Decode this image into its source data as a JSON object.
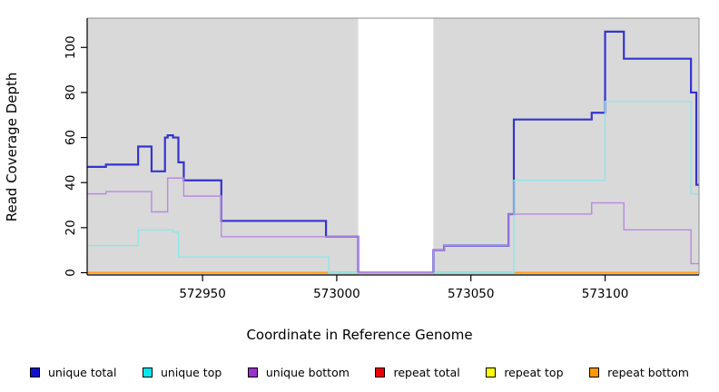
{
  "chart_data": {
    "type": "line",
    "subtype": "step-after",
    "title": "",
    "xlabel": "Coordinate in Reference Genome",
    "ylabel": "Read Coverage Depth",
    "xlim": [
      572907,
      573135
    ],
    "ylim": [
      -1,
      113
    ],
    "x_ticks": [
      572950,
      573000,
      573050,
      573100
    ],
    "y_ticks": [
      0,
      20,
      40,
      60,
      80,
      100
    ],
    "grid": false,
    "legend_position": "bottom",
    "panel_bg": "#d9d9d9",
    "masked_region": {
      "from": 573008,
      "to": 573036,
      "color": "#ffffff"
    },
    "baseline_overlap_segment": {
      "from": 572997,
      "to": 573066,
      "value": 0,
      "color": "#86c986"
    },
    "series": [
      {
        "name": "unique total",
        "color": "#3434cf",
        "legend_color": "#1111cc",
        "width": 2.2,
        "points": [
          [
            572907,
            47
          ],
          [
            572914,
            48
          ],
          [
            572926,
            56
          ],
          [
            572931,
            45
          ],
          [
            572936,
            60
          ],
          [
            572937,
            61
          ],
          [
            572939,
            60
          ],
          [
            572941,
            49
          ],
          [
            572943,
            41
          ],
          [
            572957,
            23
          ],
          [
            572996,
            16
          ],
          [
            573008,
            0
          ],
          [
            573036,
            10
          ],
          [
            573040,
            12
          ],
          [
            573064,
            26
          ],
          [
            573066,
            68
          ],
          [
            573095,
            71
          ],
          [
            573100,
            107
          ],
          [
            573107,
            95
          ],
          [
            573132,
            80
          ],
          [
            573134,
            39
          ]
        ]
      },
      {
        "name": "unique top",
        "color": "#8fe6e9",
        "legend_color": "#00eaee",
        "width": 1.4,
        "points": [
          [
            572907,
            12
          ],
          [
            572926,
            19
          ],
          [
            572939,
            18
          ],
          [
            572941,
            7
          ],
          [
            572997,
            0
          ],
          [
            573066,
            41
          ],
          [
            573100,
            76
          ],
          [
            573132,
            35
          ]
        ]
      },
      {
        "name": "unique bottom",
        "color": "#b78ade",
        "legend_color": "#9933cc",
        "width": 1.4,
        "points": [
          [
            572907,
            35
          ],
          [
            572914,
            36
          ],
          [
            572931,
            27
          ],
          [
            572937,
            42
          ],
          [
            572943,
            34
          ],
          [
            572957,
            16
          ],
          [
            573008,
            0
          ],
          [
            573036,
            10
          ],
          [
            573040,
            12
          ],
          [
            573064,
            26
          ],
          [
            573095,
            31
          ],
          [
            573107,
            19
          ],
          [
            573132,
            4
          ]
        ]
      },
      {
        "name": "repeat total",
        "color": "#dd0000",
        "legend_color": "#ee0000",
        "width": 1.5,
        "points": [
          [
            572907,
            0
          ]
        ]
      },
      {
        "name": "repeat top",
        "color": "#ffff00",
        "legend_color": "#ffff00",
        "width": 1.5,
        "points": [
          [
            572907,
            0
          ]
        ]
      },
      {
        "name": "repeat bottom",
        "color": "#ff9c1a",
        "legend_color": "#ff9900",
        "width": 2,
        "points": [
          [
            572907,
            0
          ]
        ]
      }
    ]
  }
}
